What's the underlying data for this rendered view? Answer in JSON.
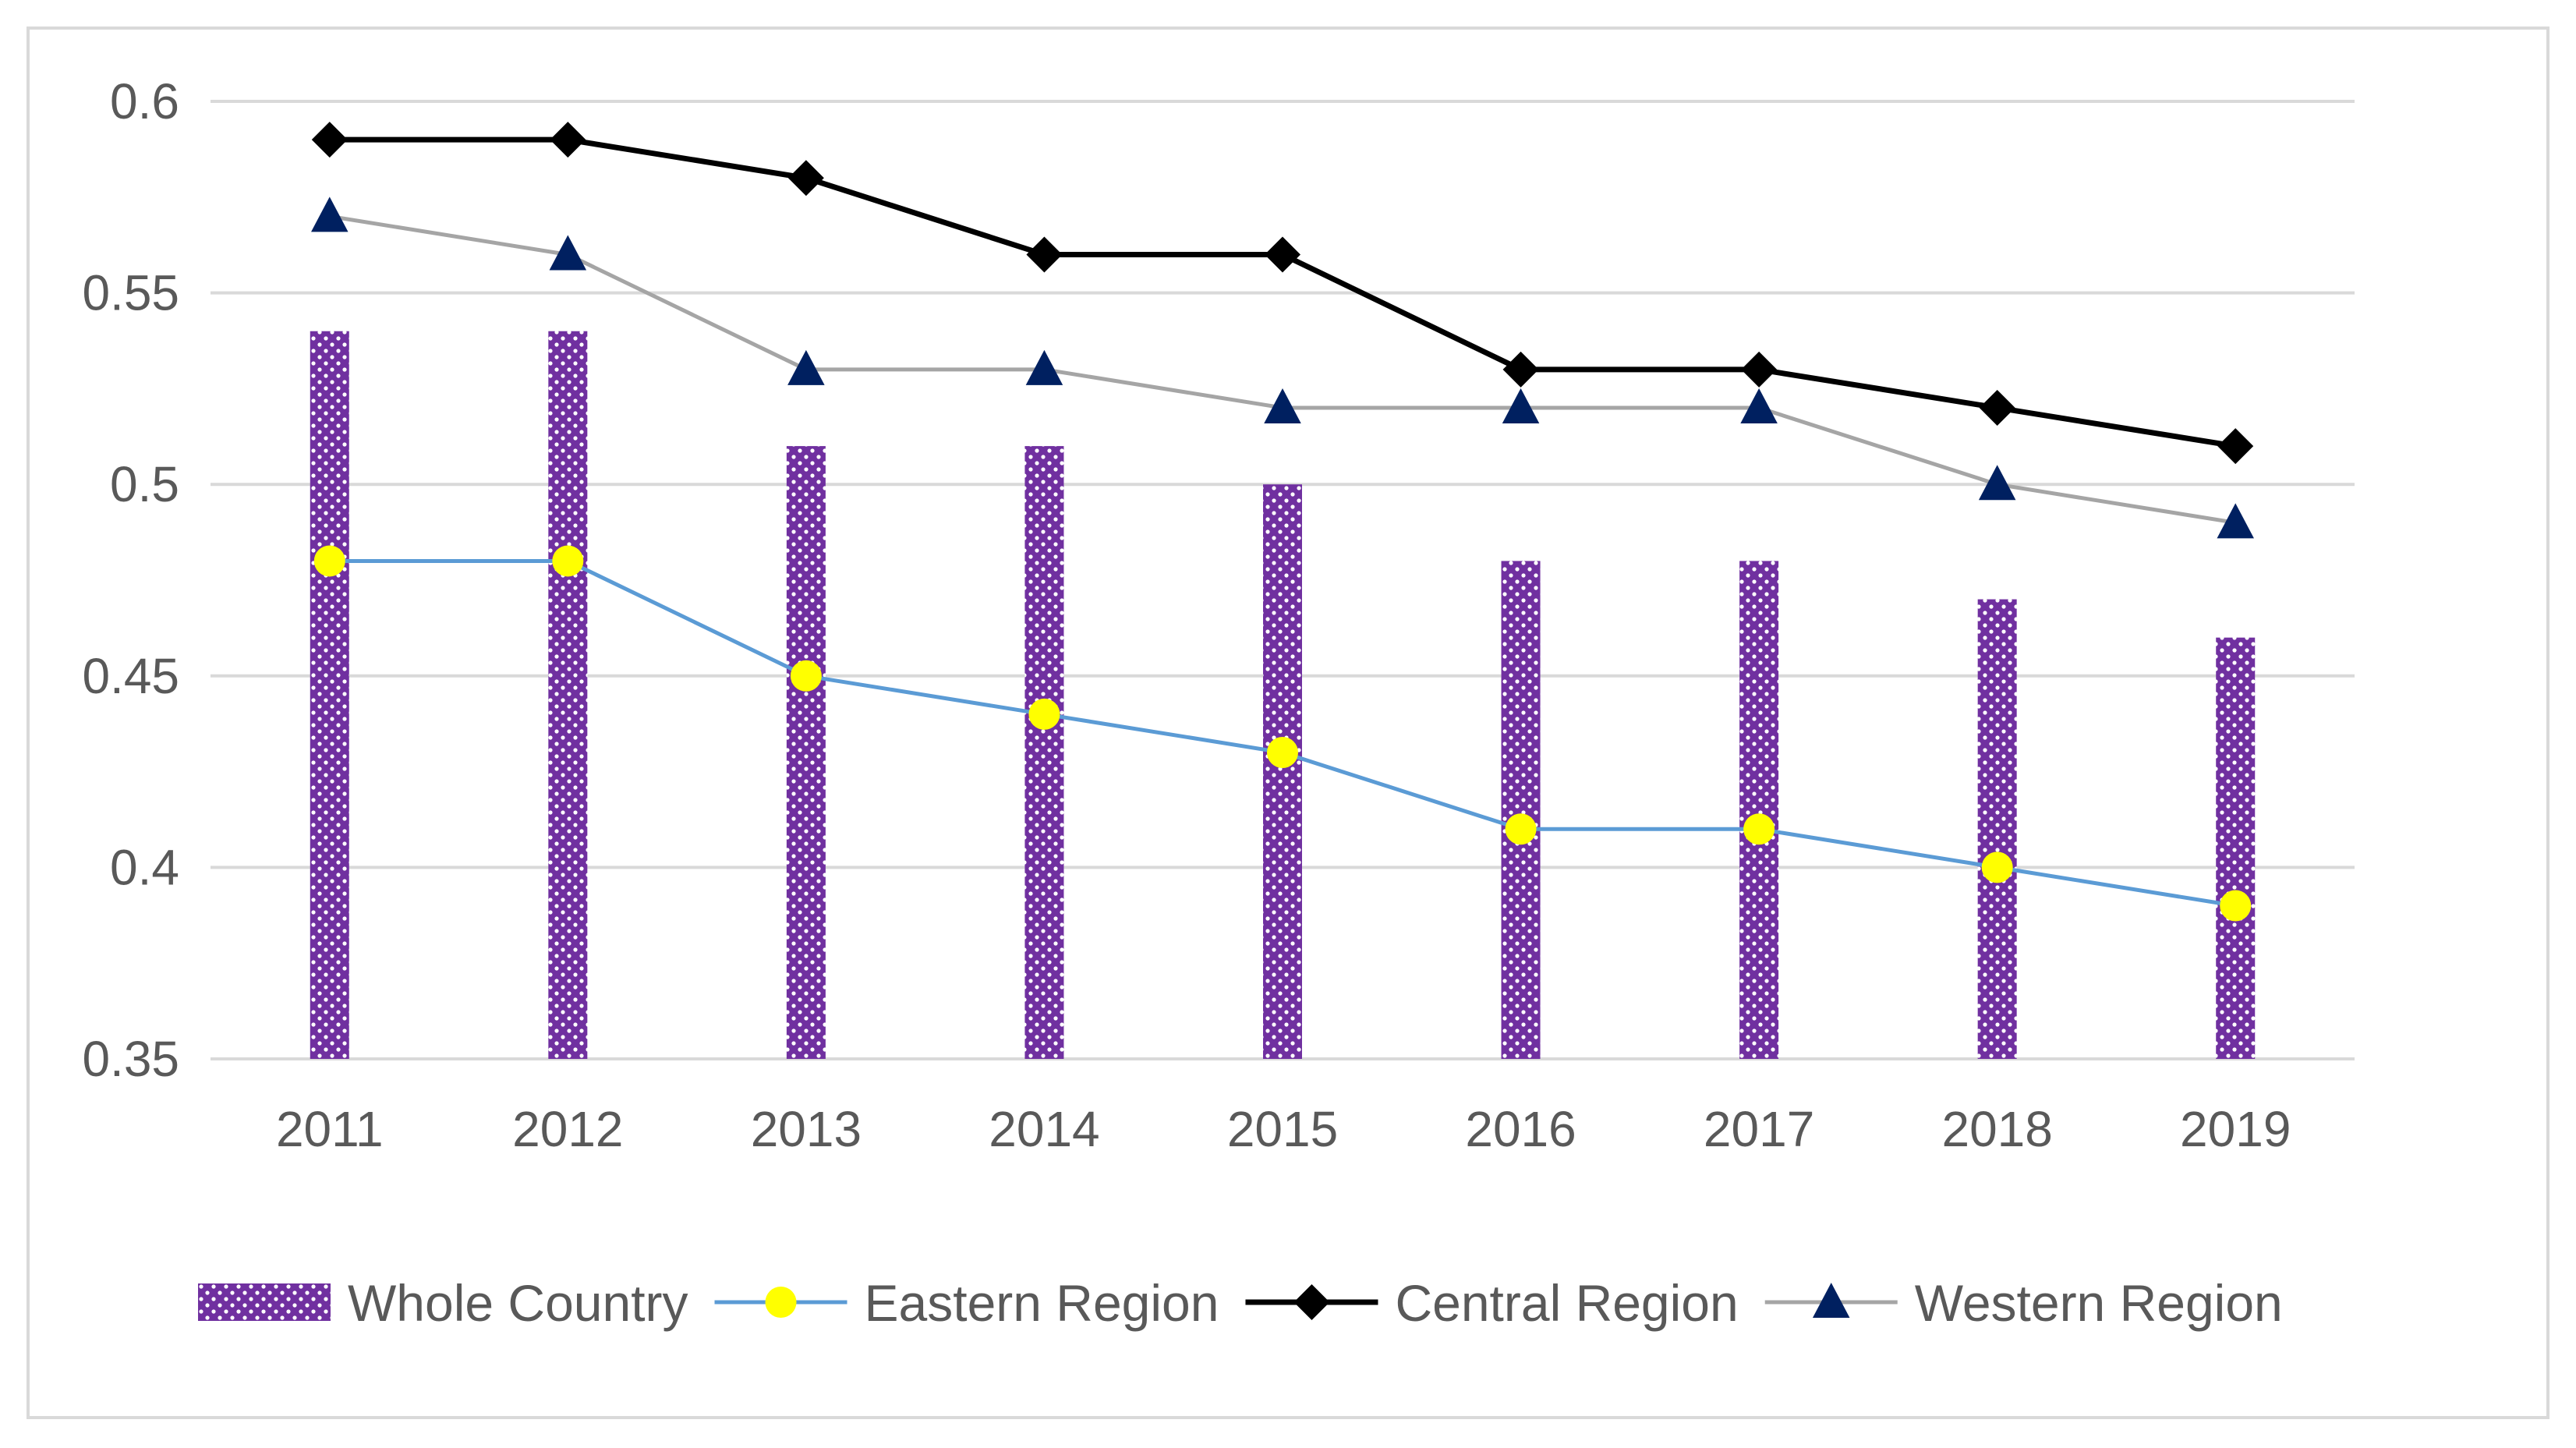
{
  "chart_data": {
    "type": "bar",
    "title": "",
    "xlabel": "",
    "ylabel": "",
    "ylim": [
      0.35,
      0.6
    ],
    "yticks": [
      0.35,
      0.4,
      0.45,
      0.5,
      0.55,
      0.6
    ],
    "ytick_labels": [
      "0.35",
      "0.4",
      "0.45",
      "0.5",
      "0.55",
      "0.6"
    ],
    "grid": true,
    "legend_position": "bottom",
    "categories": [
      "2011",
      "2012",
      "2013",
      "2014",
      "2015",
      "2016",
      "2017",
      "2018",
      "2019"
    ],
    "series": [
      {
        "name": "Whole Country",
        "type": "bar",
        "color": "#7030a0",
        "pattern": "white-dots",
        "values": [
          0.54,
          0.54,
          0.51,
          0.51,
          0.5,
          0.48,
          0.48,
          0.47,
          0.46
        ]
      },
      {
        "name": "Eastern Region",
        "type": "line",
        "color": "#5b9bd5",
        "marker": "circle",
        "marker_color": "#ffff00",
        "values": [
          0.48,
          0.48,
          0.45,
          0.44,
          0.43,
          0.41,
          0.41,
          0.4,
          0.39
        ]
      },
      {
        "name": "Central Region",
        "type": "line",
        "color": "#000000",
        "marker": "diamond",
        "marker_color": "#000000",
        "values": [
          0.59,
          0.59,
          0.58,
          0.56,
          0.56,
          0.53,
          0.53,
          0.52,
          0.51
        ]
      },
      {
        "name": "Western Region",
        "type": "line",
        "color": "#a5a5a5",
        "marker": "triangle",
        "marker_color": "#002060",
        "values": [
          0.57,
          0.56,
          0.53,
          0.53,
          0.52,
          0.52,
          0.52,
          0.5,
          0.49
        ]
      }
    ]
  }
}
